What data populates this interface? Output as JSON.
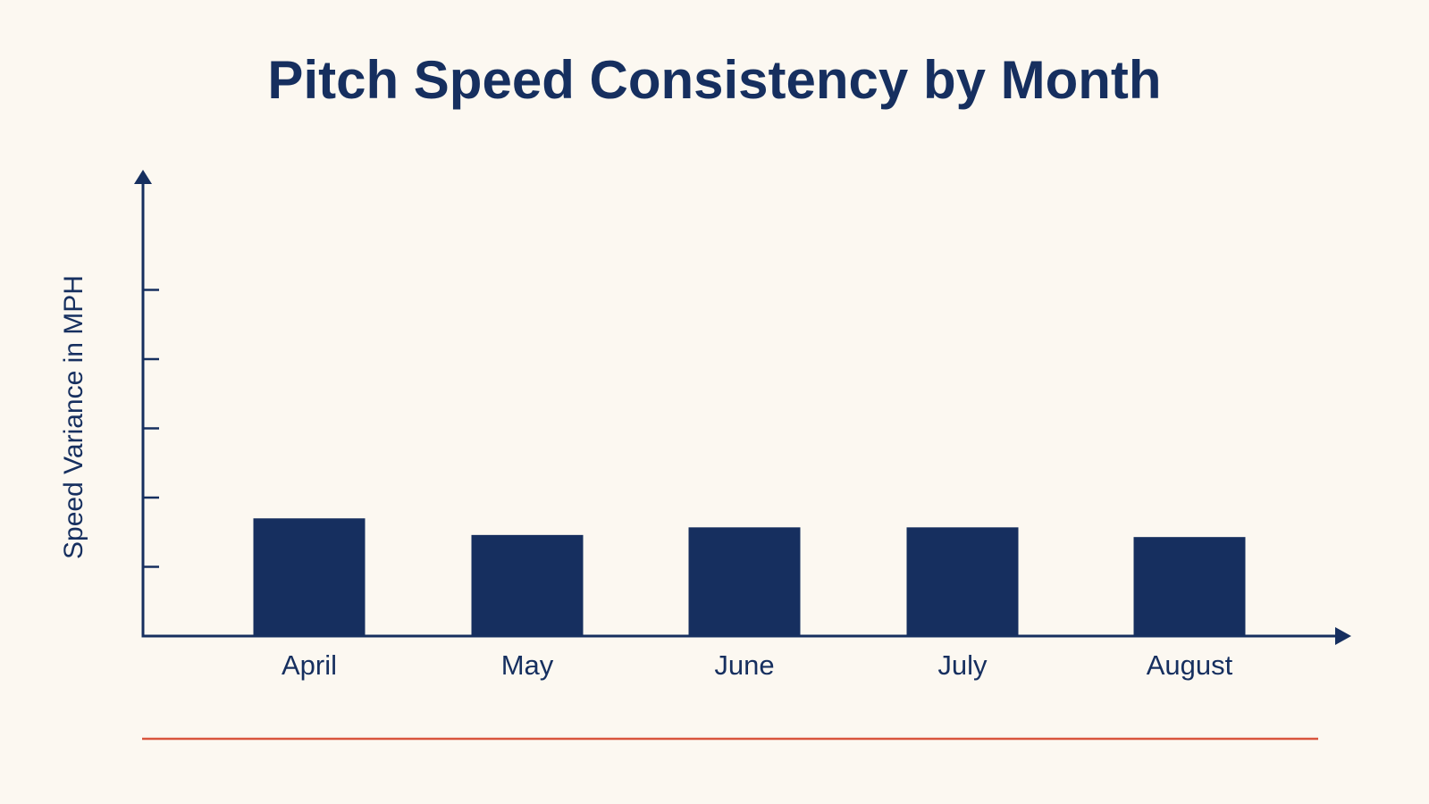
{
  "chart_data": {
    "type": "bar",
    "title": "Pitch Speed Consistency by Month",
    "xlabel": "",
    "ylabel": "Speed Variance in MPH",
    "categories": [
      "April",
      "May",
      "June",
      "July",
      "August"
    ],
    "values": [
      1.7,
      1.46,
      1.57,
      1.57,
      1.43
    ],
    "ylim": [
      0,
      6
    ],
    "yticks": [
      1,
      2,
      3,
      4,
      5
    ],
    "show_tick_labels_y": false,
    "grid": false,
    "legend": "none"
  },
  "colors": {
    "background": "#fcf8f1",
    "bar": "#162f5f",
    "axis": "#162f5f",
    "text": "#162f5f",
    "rule": "#d9553d"
  }
}
